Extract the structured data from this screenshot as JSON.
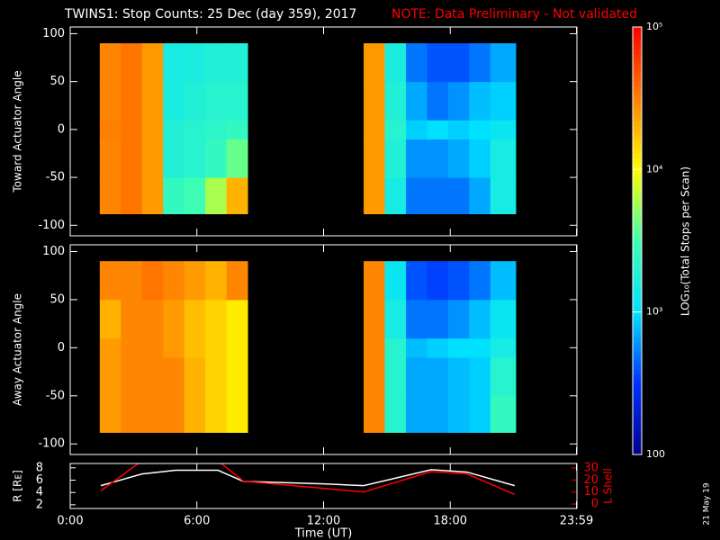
{
  "chart_data": [
    {
      "type": "heatmap",
      "title": "TWINS1: Stop Counts: 25 Dec (day 359), 2017",
      "subtitle": "NOTE: Data Preliminary - Not validated",
      "ylabel": "Toward Actuator Angle",
      "xlim": [
        0,
        24
      ],
      "ylim": [
        -111,
        107
      ],
      "yticks": [
        -100,
        -50,
        0,
        50,
        100
      ],
      "x_edges": [
        1.4,
        2.4,
        3.4,
        4.4,
        5.4,
        6.4,
        7.4,
        8.4,
        13.9,
        14.9,
        15.9,
        16.9,
        17.9,
        18.9,
        19.9,
        21.1
      ],
      "y_edges": [
        -88,
        -50,
        -10,
        10,
        50,
        90
      ],
      "z": [
        [
          30000,
          35000,
          25000,
          2500,
          3000,
          6000,
          20000,
          null,
          25000,
          1500,
          500,
          500,
          500,
          700,
          1500
        ],
        [
          30000,
          35000,
          25000,
          1800,
          2000,
          2500,
          4000,
          null,
          25000,
          1800,
          600,
          600,
          700,
          900,
          1500
        ],
        [
          32000,
          35000,
          25000,
          1800,
          2000,
          2200,
          2500,
          null,
          25000,
          2000,
          900,
          1000,
          900,
          1000,
          1200
        ],
        [
          30000,
          35000,
          25000,
          1600,
          1800,
          2000,
          2000,
          null,
          25000,
          1800,
          700,
          500,
          600,
          800,
          900
        ],
        [
          30000,
          35000,
          25000,
          1500,
          1600,
          1800,
          1800,
          null,
          25000,
          1600,
          500,
          400,
          400,
          500,
          700
        ]
      ],
      "colorbar": {
        "label": "LOG₁₀(Total Stops per Scan)",
        "lim": [
          100,
          100000
        ],
        "log": true,
        "ticks": [
          100,
          {
            "value": 1000,
            "label": "10³"
          },
          {
            "value": 10000,
            "label": "10⁴"
          },
          {
            "value": 100000,
            "label": "10⁵"
          }
        ],
        "colormap": [
          "#00008c",
          "#0030ff",
          "#00e0ff",
          "#40ffb0",
          "#ffff00",
          "#ff8000",
          "#ff0000"
        ]
      }
    },
    {
      "type": "heatmap",
      "ylabel": "Away Actuator Angle",
      "xlim": [
        0,
        24
      ],
      "ylim": [
        -111,
        107
      ],
      "yticks": [
        -100,
        -50,
        0,
        50,
        100
      ],
      "x_edges": [
        1.4,
        2.4,
        3.4,
        4.4,
        5.4,
        6.4,
        7.4,
        8.4,
        13.9,
        14.9,
        15.9,
        16.9,
        17.9,
        18.9,
        19.9,
        21.1
      ],
      "y_edges": [
        -88,
        -50,
        -10,
        10,
        50,
        90
      ],
      "z": [
        [
          25000,
          30000,
          30000,
          30000,
          20000,
          15000,
          12000,
          null,
          30000,
          2000,
          700,
          700,
          800,
          900,
          2500
        ],
        [
          25000,
          30000,
          30000,
          30000,
          20000,
          15000,
          12000,
          null,
          30000,
          2000,
          700,
          700,
          800,
          900,
          2000
        ],
        [
          25000,
          30000,
          30000,
          25000,
          18000,
          15000,
          12000,
          null,
          30000,
          2000,
          800,
          900,
          1000,
          1000,
          1500
        ],
        [
          20000,
          30000,
          30000,
          25000,
          18000,
          15000,
          12000,
          null,
          30000,
          1500,
          500,
          500,
          600,
          800,
          1200
        ],
        [
          30000,
          30000,
          35000,
          30000,
          25000,
          20000,
          30000,
          null,
          30000,
          1200,
          400,
          350,
          400,
          500,
          800
        ]
      ]
    },
    {
      "type": "line",
      "xlabel": "Time (UT)",
      "xlim": [
        0,
        24
      ],
      "xticks": [
        {
          "value": 0,
          "label": "0:00"
        },
        {
          "value": 6,
          "label": "6:00"
        },
        {
          "value": 12,
          "label": "12:00"
        },
        {
          "value": 18,
          "label": "18:00"
        },
        {
          "value": 23.98,
          "label": "23:59"
        }
      ],
      "ylabel": "R [Rᴇ]",
      "ylim": [
        1.4,
        8.7
      ],
      "yticks": [
        2,
        4,
        6,
        8
      ],
      "y2label": "L Shell",
      "y2lim": [
        -3.75,
        33.75
      ],
      "y2ticks": [
        0,
        10,
        20,
        30
      ],
      "y2color": "#ff0000",
      "x": [
        1.45,
        3.4,
        5,
        7.0,
        8.2,
        12,
        13.9,
        17.1,
        18.8,
        21.05
      ],
      "series": [
        {
          "color": "#ffffff",
          "values": [
            5.1,
            7.0,
            7.6,
            7.6,
            5.8,
            5.4,
            5.1,
            7.7,
            7.3,
            5.1
          ]
        },
        {
          "color": "#ff0000",
          "axis": "y2",
          "values": [
            11,
            36,
            null,
            36,
            19,
            13,
            10,
            27,
            25,
            8
          ]
        }
      ],
      "stamp": "21 May 19"
    }
  ]
}
